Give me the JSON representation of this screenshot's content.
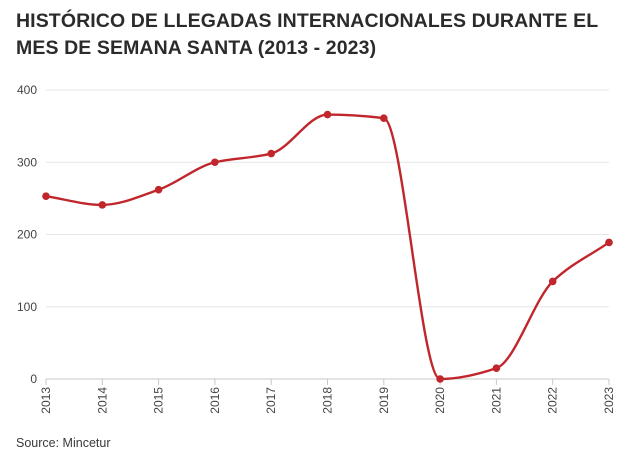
{
  "chart_data": {
    "type": "line",
    "title": "HISTÓRICO DE LLEGADAS INTERNACIONALES DURANTE EL MES DE SEMANA SANTA (2013 - 2023)",
    "xlabel": "",
    "ylabel": "",
    "categories": [
      "2013",
      "2014",
      "2015",
      "2016",
      "2017",
      "2018",
      "2019",
      "2020",
      "2021",
      "2022",
      "2023"
    ],
    "series": [
      {
        "values": [
          253,
          241,
          262,
          300,
          312,
          366,
          361,
          0,
          15,
          135,
          189
        ],
        "color": "#c0262b"
      }
    ],
    "yticks": [
      "0",
      "100",
      "200",
      "300",
      "400"
    ],
    "ylim": [
      0,
      400
    ],
    "grid": true,
    "legend": "none"
  },
  "footer": {
    "source": "Source: Mincetur"
  }
}
